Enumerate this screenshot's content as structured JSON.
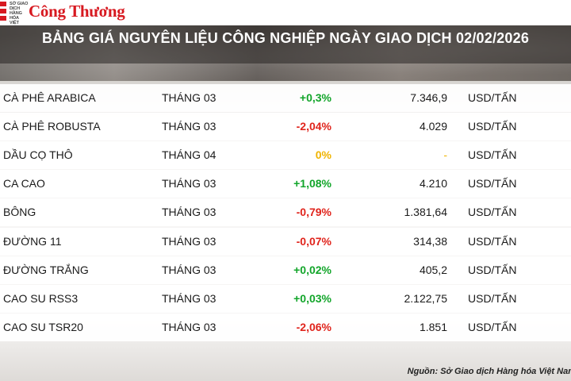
{
  "header": {
    "org_text": "SỞ GIAO DỊCH HÀNG HÓA VIỆT NAM",
    "brand": "Công Thương",
    "title": "BẢNG GIÁ NGUYÊN LIỆU CÔNG NGHIỆP NGÀY GIAO DỊCH 02/02/2026"
  },
  "colors": {
    "positive": "#12a52a",
    "negative": "#e0241c",
    "unchanged": "#f0b400",
    "brand_red": "#d71920"
  },
  "rows": [
    {
      "name": "CÀ PHÊ ARABICA",
      "month": "THÁNG 03",
      "change": "+0,3%",
      "direction": "up",
      "price": "7.346,9",
      "unit": "USD/TẤN"
    },
    {
      "name": "CÀ PHÊ ROBUSTA",
      "month": "THÁNG 03",
      "change": "-2,04%",
      "direction": "down",
      "price": "4.029",
      "unit": "USD/TẤN"
    },
    {
      "name": "DẦU CỌ THÔ",
      "month": "THÁNG 04",
      "change": "0%",
      "direction": "flat",
      "price": "-",
      "unit": "USD/TẤN"
    },
    {
      "name": "CA CAO",
      "month": "THÁNG 03",
      "change": "+1,08%",
      "direction": "up",
      "price": "4.210",
      "unit": "USD/TẤN"
    },
    {
      "name": "BÔNG",
      "month": "THÁNG 03",
      "change": "-0,79%",
      "direction": "down",
      "price": "1.381,64",
      "unit": "USD/TẤN"
    },
    {
      "name": "ĐƯỜNG 11",
      "month": "THÁNG 03",
      "change": "-0,07%",
      "direction": "down",
      "price": "314,38",
      "unit": "USD/TẤN"
    },
    {
      "name": "ĐƯỜNG TRẮNG",
      "month": "THÁNG 03",
      "change": "+0,02%",
      "direction": "up",
      "price": "405,2",
      "unit": "USD/TẤN"
    },
    {
      "name": "CAO SU RSS3",
      "month": "THÁNG 03",
      "change": "+0,03%",
      "direction": "up",
      "price": "2.122,75",
      "unit": "USD/TẤN"
    },
    {
      "name": "CAO SU TSR20",
      "month": "THÁNG 03",
      "change": "-2,06%",
      "direction": "down",
      "price": "1.851",
      "unit": "USD/TẤN"
    }
  ],
  "footer": {
    "source": "Nguồn: Sở Giao dịch Hàng hóa Việt Nam"
  }
}
